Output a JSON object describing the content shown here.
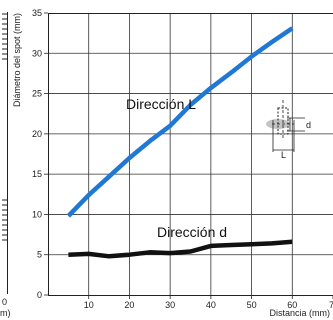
{
  "chart_data": {
    "type": "line",
    "xlabel": "Distancia (mm)",
    "ylabel": "Diámetro del spot (mm)",
    "xlim": [
      0,
      70
    ],
    "ylim": [
      0,
      35
    ],
    "x_ticks": [
      "10",
      "20",
      "30",
      "40",
      "50",
      "60",
      "7"
    ],
    "y_ticks": [
      "0",
      "5",
      "10",
      "15",
      "20",
      "25",
      "30",
      "35"
    ],
    "grid": true,
    "series": [
      {
        "name": "Dirección L",
        "color": "#1f78d4",
        "points": [
          [
            5,
            9.8
          ],
          [
            10,
            12.4
          ],
          [
            15,
            14.7
          ],
          [
            20,
            17.0
          ],
          [
            25,
            19.1
          ],
          [
            30,
            21.0
          ],
          [
            35,
            23.6
          ],
          [
            40,
            25.7
          ],
          [
            45,
            27.6
          ],
          [
            50,
            29.6
          ],
          [
            55,
            31.4
          ],
          [
            60,
            33.1
          ]
        ]
      },
      {
        "name": "Dirección d",
        "color": "#111111",
        "points": [
          [
            5,
            5.0
          ],
          [
            10,
            5.1
          ],
          [
            15,
            4.8
          ],
          [
            20,
            5.0
          ],
          [
            25,
            5.3
          ],
          [
            30,
            5.2
          ],
          [
            35,
            5.4
          ],
          [
            40,
            6.1
          ],
          [
            45,
            6.2
          ],
          [
            50,
            6.3
          ],
          [
            55,
            6.4
          ],
          [
            60,
            6.6
          ]
        ]
      }
    ],
    "inset": {
      "label_d": "d",
      "label_L": "L"
    },
    "left_fragment": {
      "bottom_tick": "0",
      "bottom_unit": "m)"
    }
  }
}
